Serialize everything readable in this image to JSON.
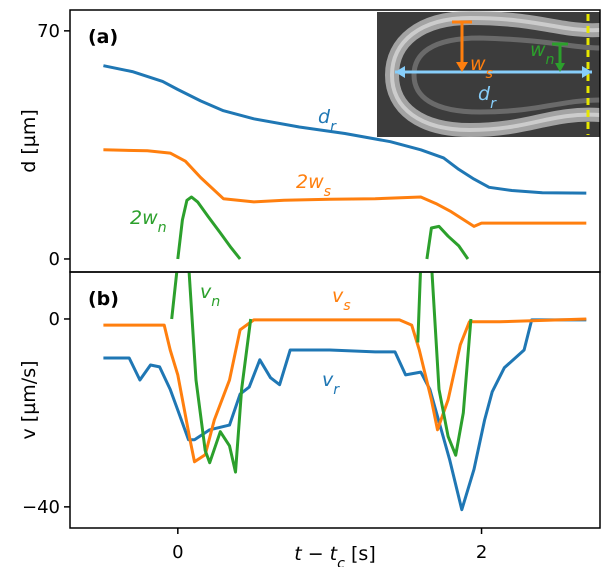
{
  "chart_data": [
    {
      "type": "line",
      "panel_label": "(a)",
      "ylabel": "d [µm]",
      "xlim": [
        -0.71,
        2.78
      ],
      "ylim": [
        -4,
        76.4
      ],
      "yticks": [
        0,
        70
      ],
      "series": [
        {
          "color": "#1f77b4",
          "x": [
            -0.49,
            -0.3,
            -0.1,
            0,
            0.15,
            0.3,
            0.5,
            0.8,
            1.1,
            1.4,
            1.6,
            1.75,
            1.85,
            1.95,
            2.05,
            2.2,
            2.4,
            2.69
          ],
          "values": [
            59.3,
            57.5,
            54.5,
            52,
            48.5,
            45.5,
            43,
            40.5,
            38.5,
            36,
            33.5,
            31,
            27.5,
            24.5,
            22,
            21,
            20.3,
            20.2
          ]
        },
        {
          "color": "#ff7f0e",
          "x": [
            -0.49,
            -0.2,
            -0.05,
            0.05,
            0.15,
            0.3,
            0.5,
            0.7,
            1.0,
            1.3,
            1.6,
            1.7,
            1.8,
            1.9,
            1.95,
            2.0,
            2.69
          ],
          "values": [
            33.5,
            33.2,
            32.5,
            30,
            25,
            18.5,
            17.5,
            18,
            18.3,
            18.5,
            19,
            17,
            14.5,
            11.5,
            10,
            11,
            11
          ]
        },
        {
          "color": "#2ca02c",
          "x": [
            0,
            0.03,
            0.06,
            0.09,
            0.13,
            0.2,
            0.28,
            0.35,
            0.41,
            1.0,
            1.64,
            1.67,
            1.72,
            1.78,
            1.85,
            1.91
          ],
          "values": [
            0,
            12,
            18,
            19,
            17.5,
            13,
            8,
            3.5,
            0,
            null,
            0,
            9.5,
            10,
            7,
            4,
            0
          ]
        }
      ],
      "annotations": [
        {
          "text": "d",
          "sub": "r",
          "color": "#1f77b4"
        },
        {
          "text": "2w",
          "sub": "s",
          "color": "#ff7f0e"
        },
        {
          "text": "2w",
          "sub": "n",
          "color": "#2ca02c"
        }
      ],
      "inset": {
        "labels": [
          {
            "text": "w",
            "sub": "n",
            "color": "#2ca02c"
          },
          {
            "text": "w",
            "sub": "s",
            "color": "#ff7f0e"
          },
          {
            "text": "d",
            "sub": "r",
            "color": "#87cefa"
          }
        ]
      }
    },
    {
      "type": "line",
      "panel_label": "(b)",
      "ylabel": "v [µm/s]",
      "xlabel": {
        "text": "t − t",
        "sub": "c",
        "after": " [s]"
      },
      "xlim": [
        -0.71,
        2.78
      ],
      "ylim": [
        -44.5,
        10
      ],
      "yticks": [
        0,
        {
          "value": -40,
          "label": "−40"
        }
      ],
      "xticks": [
        0,
        2
      ],
      "series": [
        {
          "color": "#1f77b4",
          "x": [
            -0.49,
            -0.32,
            -0.25,
            -0.18,
            -0.12,
            -0.05,
            0,
            0.07,
            0.11,
            0.21,
            0.34,
            0.41,
            0.47,
            0.54,
            0.61,
            0.67,
            0.74,
            1.0,
            1.3,
            1.43,
            1.5,
            1.6,
            1.66,
            1.79,
            1.87,
            1.95,
            2.02,
            2.07,
            2.15,
            2.28,
            2.33,
            2.69
          ],
          "values": [
            -8.3,
            -8.3,
            -13,
            -9.8,
            -10.2,
            -15,
            -19.4,
            -25.7,
            -25.7,
            -23.6,
            -22.6,
            -16,
            -14.5,
            -8.7,
            -12.5,
            -14,
            -6.6,
            -6.6,
            -7,
            -7,
            -11.9,
            -11.3,
            -15,
            -30,
            -40.6,
            -32,
            -21.5,
            -15.5,
            -10.4,
            -6.6,
            -0.2,
            -0.2
          ]
        },
        {
          "color": "#ff7f0e",
          "x": [
            -0.49,
            -0.09,
            -0.05,
            0,
            0.08,
            0.11,
            0.18,
            0.24,
            0.34,
            0.41,
            0.5,
            1.46,
            1.54,
            1.59,
            1.67,
            1.71,
            1.78,
            1.86,
            1.92,
            2.12,
            2.69
          ],
          "values": [
            -1.3,
            -1.3,
            -6.6,
            -11.9,
            -25.7,
            -30.4,
            -28.9,
            -21.5,
            -13,
            -2.3,
            -0.2,
            -0.2,
            -1.3,
            -6.6,
            -17.2,
            -23.6,
            -17.2,
            -5.5,
            -0.6,
            -0.6,
            0
          ]
        },
        {
          "color": "#2ca02c",
          "x": [
            -0.04,
            0,
            0.07,
            0.12,
            0.18,
            0.21,
            0.28,
            0.34,
            0.38,
            0.42,
            0.48,
            1.0,
            1.58,
            1.6,
            1.67,
            1.72,
            1.78,
            1.83,
            1.88,
            1.93
          ],
          "values": [
            0,
            12,
            12,
            -13,
            -28,
            -30.6,
            -24,
            -27,
            -32.6,
            -15,
            0,
            null,
            -5,
            12,
            12,
            -15,
            -25,
            -29,
            -20,
            0
          ]
        }
      ],
      "annotations": [
        {
          "text": "v",
          "sub": "n",
          "color": "#2ca02c"
        },
        {
          "text": "v",
          "sub": "s",
          "color": "#ff7f0e"
        },
        {
          "text": "v",
          "sub": "r",
          "color": "#1f77b4"
        }
      ]
    }
  ]
}
